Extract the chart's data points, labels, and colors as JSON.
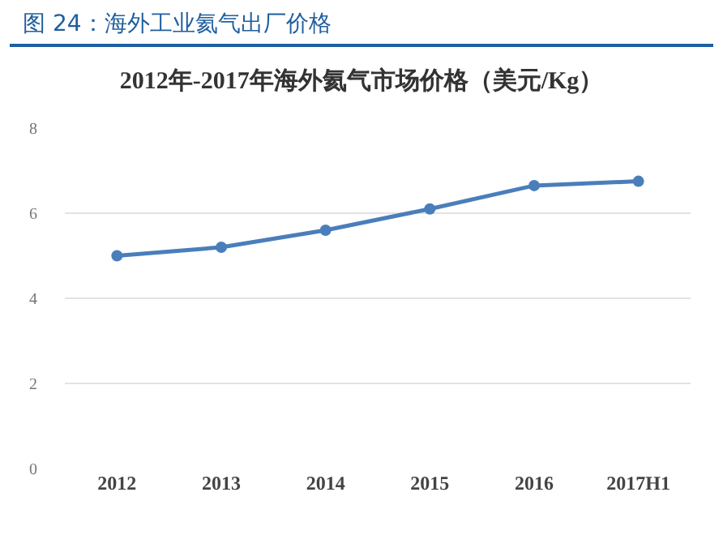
{
  "chart_data": {
    "type": "line",
    "title": "图 24：海外工业氦气出厂价格",
    "subtitle": "2012年-2017年海外氦气市场价格（美元/Kg）",
    "categories": [
      "2012",
      "2013",
      "2014",
      "2015",
      "2016",
      "2017H1"
    ],
    "series": [
      {
        "color": "#4a7ebb",
        "values": [
          5.0,
          5.2,
          5.6,
          6.1,
          6.65,
          6.75
        ]
      }
    ],
    "ylim": [
      0,
      8
    ],
    "yticks": [
      0,
      2,
      4,
      6,
      8
    ],
    "grid": "y",
    "marker": "circle",
    "line_style": "solid"
  }
}
